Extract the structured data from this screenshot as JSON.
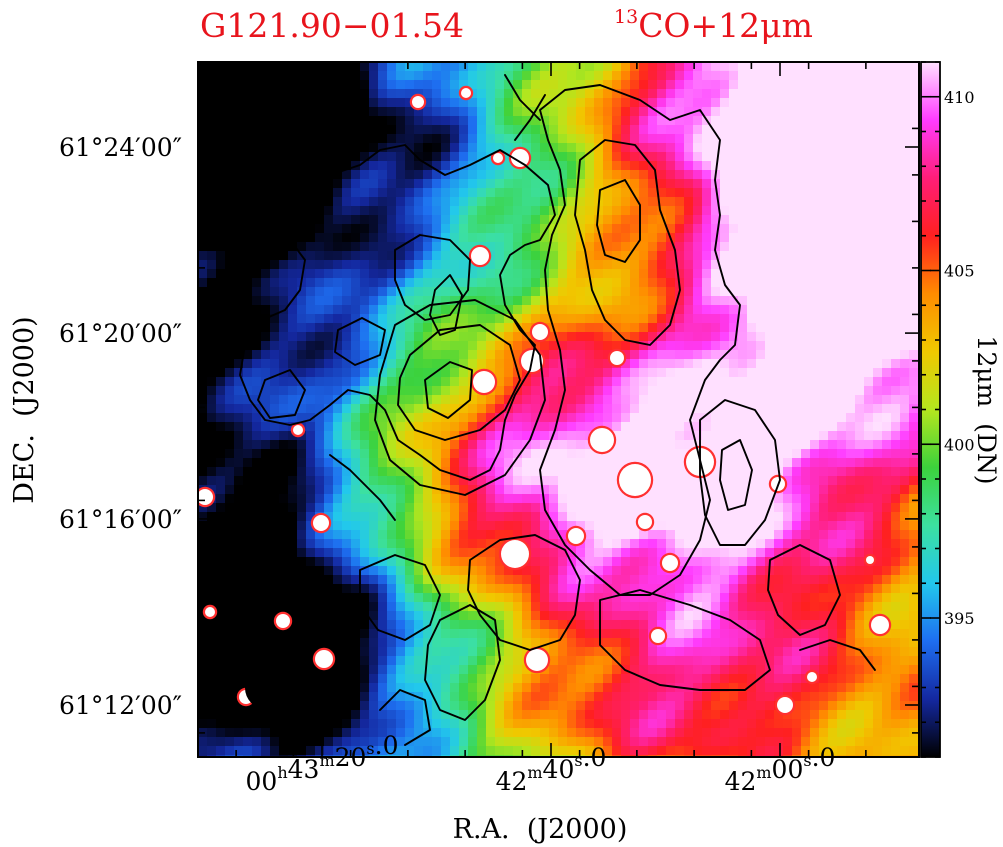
{
  "header": {
    "source_name": "G121.90−01.54",
    "tracer_sup": "13",
    "tracer_main": "CO+12μm"
  },
  "chart_data": {
    "type": "heatmap",
    "title": "G121.90−01.54",
    "subtitle": "13CO+12μm",
    "xlabel": "R.A.  (J2000)",
    "ylabel": "DEC.  (J2000)",
    "x_ticks": [
      {
        "h": "00",
        "m": "43",
        "s": "20",
        "frac": "0",
        "full": "00h43m20s.0"
      },
      {
        "h": "",
        "m": "42",
        "s": "40",
        "frac": "0",
        "full": "42m40s.0"
      },
      {
        "h": "",
        "m": "42",
        "s": "00",
        "frac": "0",
        "full": "42m00s.0"
      }
    ],
    "y_ticks": [
      "61°24′00″",
      "61°20′00″",
      "61°16′00″",
      "61°12′00″"
    ],
    "y_tick_values_deg": [
      61.4,
      61.3333,
      61.2667,
      61.2
    ],
    "x_tick_values_sec": [
      200,
      160,
      120
    ],
    "colorbar": {
      "label": "12μm  (DN)",
      "ticks": [
        395,
        400,
        405,
        410
      ],
      "range": [
        391,
        411
      ],
      "colormap": [
        "#000000",
        "#1428a0",
        "#1e6ef0",
        "#22c8ec",
        "#3ce0a0",
        "#3cd23c",
        "#b4e61e",
        "#f0c800",
        "#ff8c00",
        "#ff2020",
        "#ff1e78",
        "#ff3cff",
        "#ffe0ff"
      ]
    },
    "overlay": "13CO contours (black)",
    "beam": "filled black circle, lower left",
    "colors": {
      "title": "#e8141c",
      "contour": "#000000",
      "beam": "#000000"
    }
  }
}
